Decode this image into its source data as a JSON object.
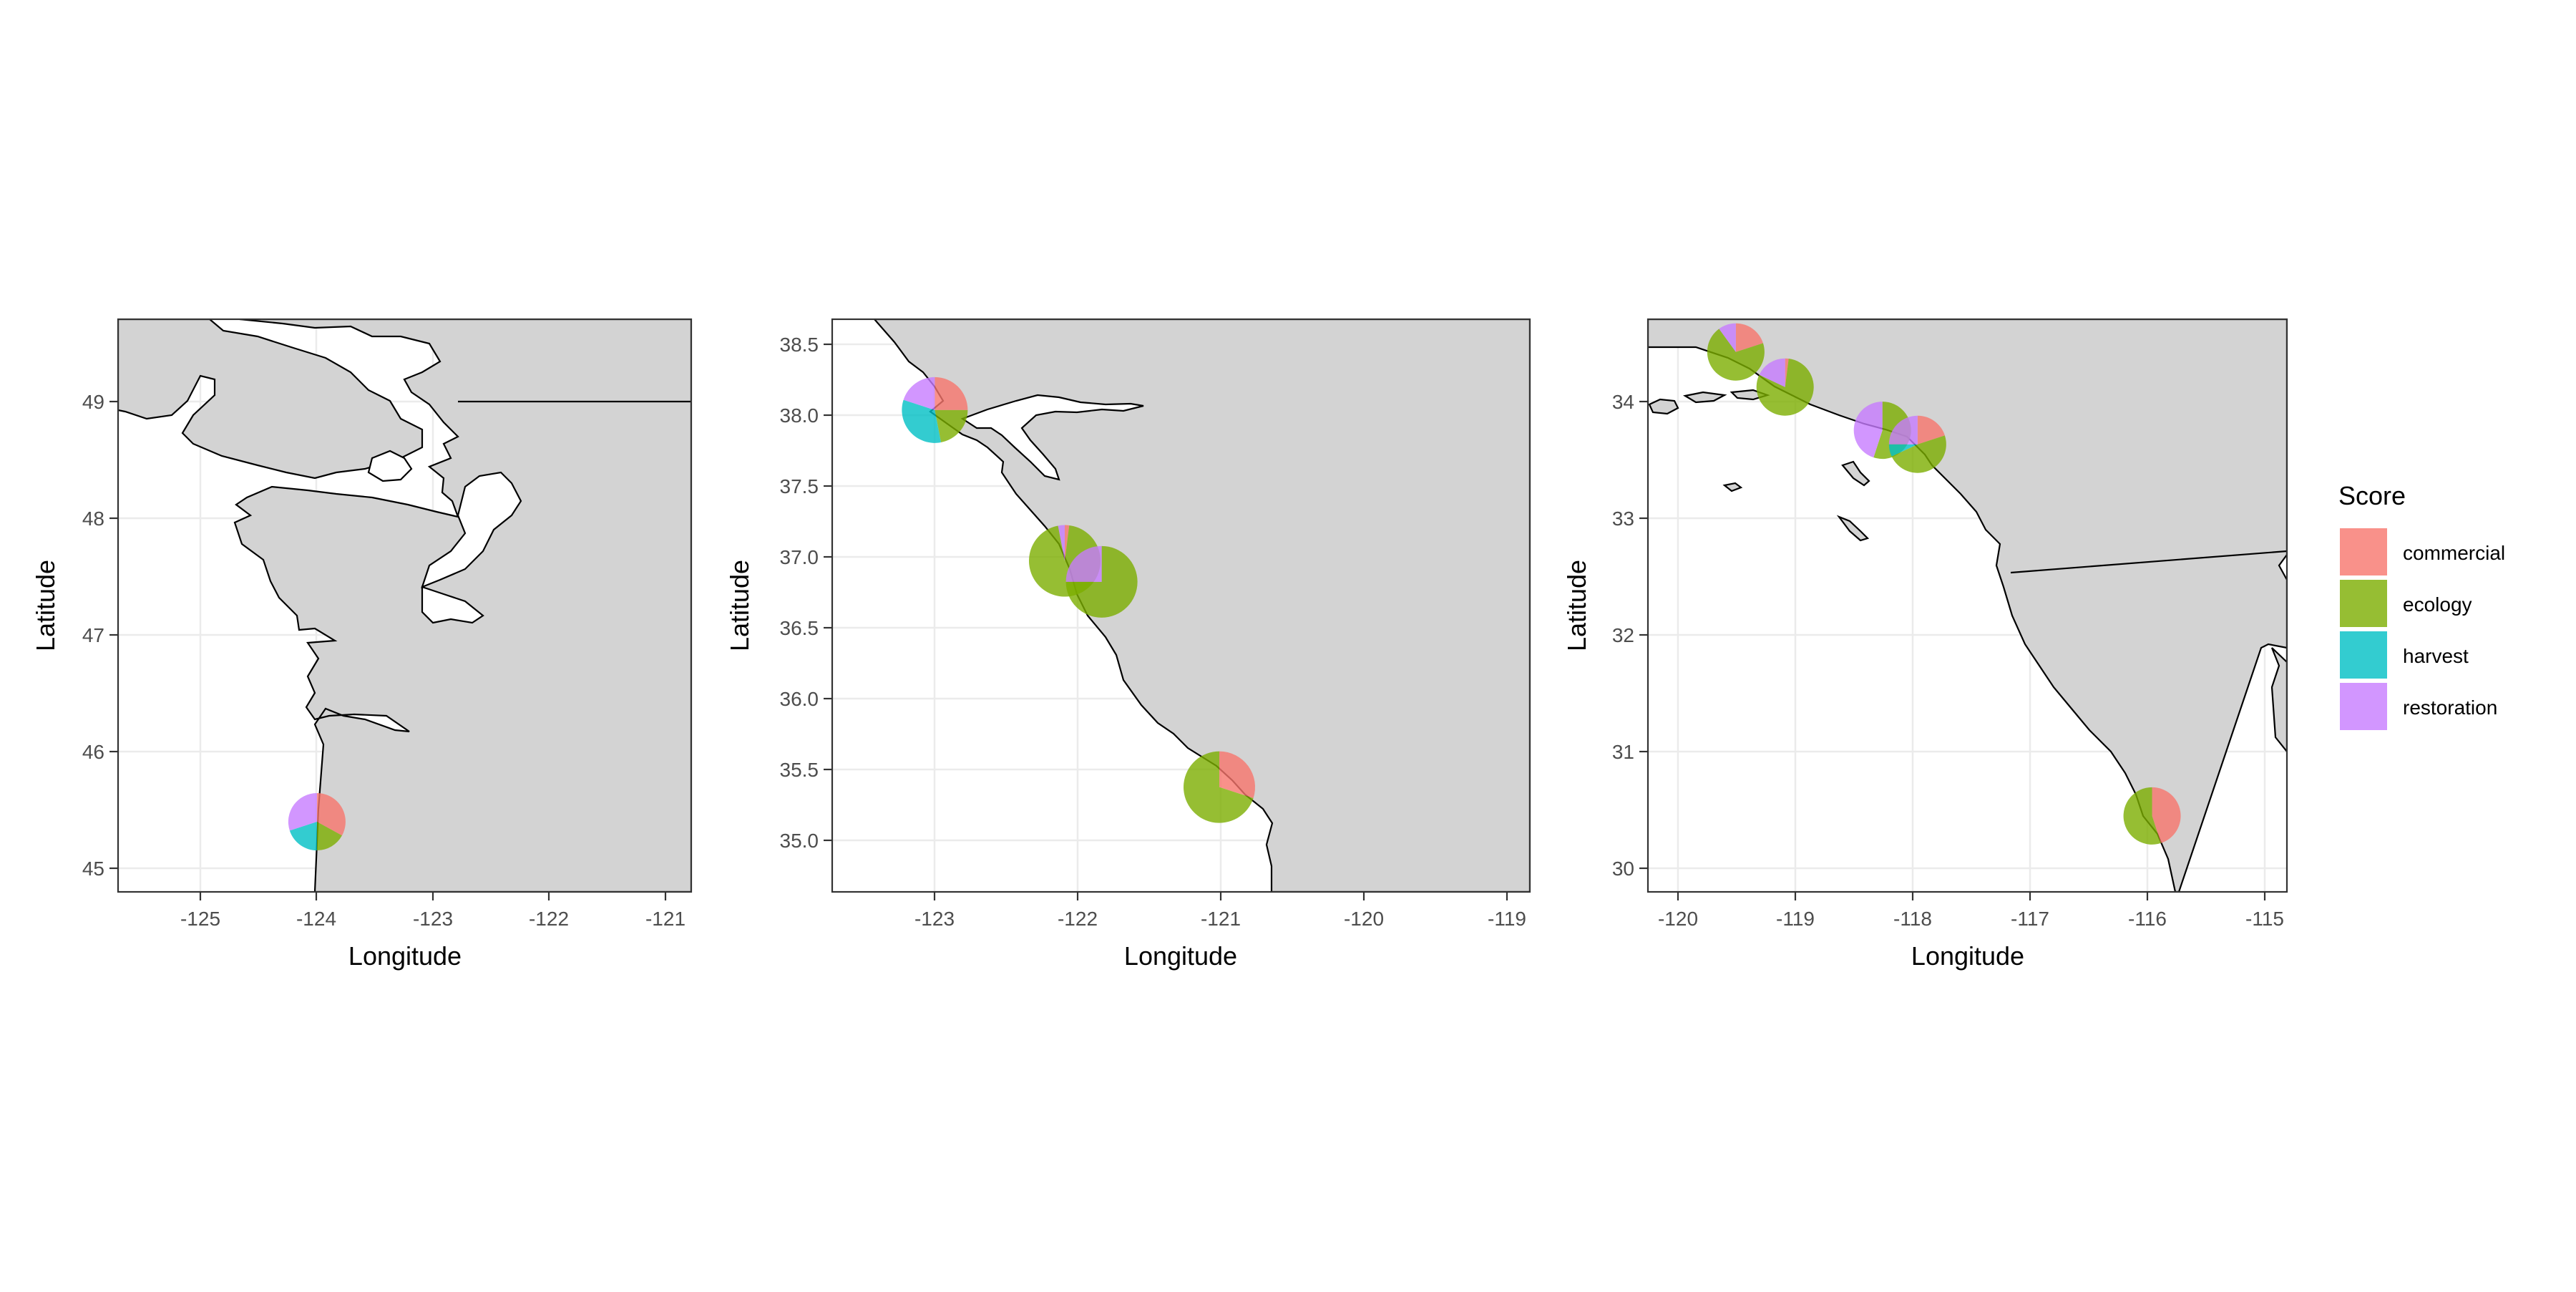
{
  "chart_data": {
    "type": "map-pie",
    "legend": {
      "title": "Score",
      "placement": "right",
      "items": [
        {
          "key": "commercial",
          "label": "commercial",
          "color": "#F8766D"
        },
        {
          "key": "ecology",
          "label": "ecology",
          "color": "#7CAE00"
        },
        {
          "key": "harvest",
          "label": "harvest",
          "color": "#00BFC4"
        },
        {
          "key": "restoration",
          "label": "restoration",
          "color": "#C77CFF"
        }
      ]
    },
    "land_color": "#d3d3d3",
    "water_color": "#ffffff",
    "grid": true,
    "panels": [
      {
        "id": "north",
        "xlabel": "Longitude",
        "ylabel": "Latitude",
        "xlim": [
          -125.7,
          -120.8
        ],
        "ylim": [
          44.8,
          49.7
        ],
        "xticks": [
          -125,
          -124,
          -123,
          -122,
          -121
        ],
        "yticks": [
          45,
          46,
          47,
          48,
          49
        ],
        "xtick_labels": [
          "-125",
          "-124",
          "-123",
          "-122",
          "-121"
        ],
        "ytick_labels": [
          "45",
          "46",
          "47",
          "48",
          "49"
        ],
        "pies": [
          {
            "lon": -124.0,
            "lat": 45.4,
            "size": 1.0,
            "values": {
              "commercial": 0.33,
              "ecology": 0.17,
              "harvest": 0.2,
              "restoration": 0.3
            }
          }
        ]
      },
      {
        "id": "central",
        "xlabel": "Longitude",
        "ylabel": "Latitude",
        "xlim": [
          -123.7,
          -118.6
        ],
        "ylim": [
          34.6,
          38.7
        ],
        "xticks": [
          -123,
          -122,
          -121,
          -120,
          -119
        ],
        "yticks": [
          35.0,
          35.5,
          36.0,
          36.5,
          37.0,
          37.5,
          38.0,
          38.5
        ],
        "xtick_labels": [
          "-123",
          "-122",
          "-121",
          "-120",
          "-119"
        ],
        "ytick_labels": [
          "35.0",
          "35.5",
          "36.0",
          "36.5",
          "37.0",
          "37.5",
          "38.0",
          "38.5"
        ],
        "pies": [
          {
            "lon": -122.95,
            "lat": 38.05,
            "size": 1.15,
            "values": {
              "commercial": 0.25,
              "ecology": 0.22,
              "harvest": 0.33,
              "restoration": 0.2
            }
          },
          {
            "lon": -122.0,
            "lat": 36.97,
            "size": 1.25,
            "values": {
              "commercial": 0.02,
              "ecology": 0.95,
              "harvest": 0.0,
              "restoration": 0.03
            }
          },
          {
            "lon": -121.73,
            "lat": 36.82,
            "size": 1.25,
            "values": {
              "commercial": 0.0,
              "ecology": 0.75,
              "harvest": 0.0,
              "restoration": 0.25
            }
          },
          {
            "lon": -120.87,
            "lat": 35.35,
            "size": 1.25,
            "values": {
              "commercial": 0.3,
              "ecology": 0.7,
              "harvest": 0.0,
              "restoration": 0.0
            }
          }
        ]
      },
      {
        "id": "south",
        "xlabel": "Longitude",
        "ylabel": "Latitude",
        "xlim": [
          -120.25,
          -114.8
        ],
        "ylim": [
          29.8,
          34.7
        ],
        "xticks": [
          -120,
          -119,
          -118,
          -117,
          -116,
          -115
        ],
        "yticks": [
          30,
          31,
          32,
          33,
          34
        ],
        "xtick_labels": [
          "-120",
          "-119",
          "-118",
          "-117",
          "-116",
          "-115"
        ],
        "ytick_labels": [
          "30",
          "31",
          "32",
          "33",
          "34"
        ],
        "pies": [
          {
            "lon": -119.5,
            "lat": 34.42,
            "size": 1.0,
            "values": {
              "commercial": 0.2,
              "ecology": 0.7,
              "harvest": 0.0,
              "restoration": 0.1
            }
          },
          {
            "lon": -119.08,
            "lat": 34.12,
            "size": 1.0,
            "values": {
              "commercial": 0.02,
              "ecology": 0.8,
              "harvest": 0.0,
              "restoration": 0.18
            }
          },
          {
            "lon": -118.25,
            "lat": 33.75,
            "size": 1.0,
            "values": {
              "commercial": 0.0,
              "ecology": 0.55,
              "harvest": 0.0,
              "restoration": 0.45
            }
          },
          {
            "lon": -117.95,
            "lat": 33.63,
            "size": 1.0,
            "values": {
              "commercial": 0.2,
              "ecology": 0.48,
              "harvest": 0.07,
              "restoration": 0.25
            }
          },
          {
            "lon": -115.95,
            "lat": 30.45,
            "size": 1.0,
            "values": {
              "commercial": 0.45,
              "ecology": 0.55,
              "harvest": 0.0,
              "restoration": 0.0
            }
          }
        ]
      }
    ]
  }
}
